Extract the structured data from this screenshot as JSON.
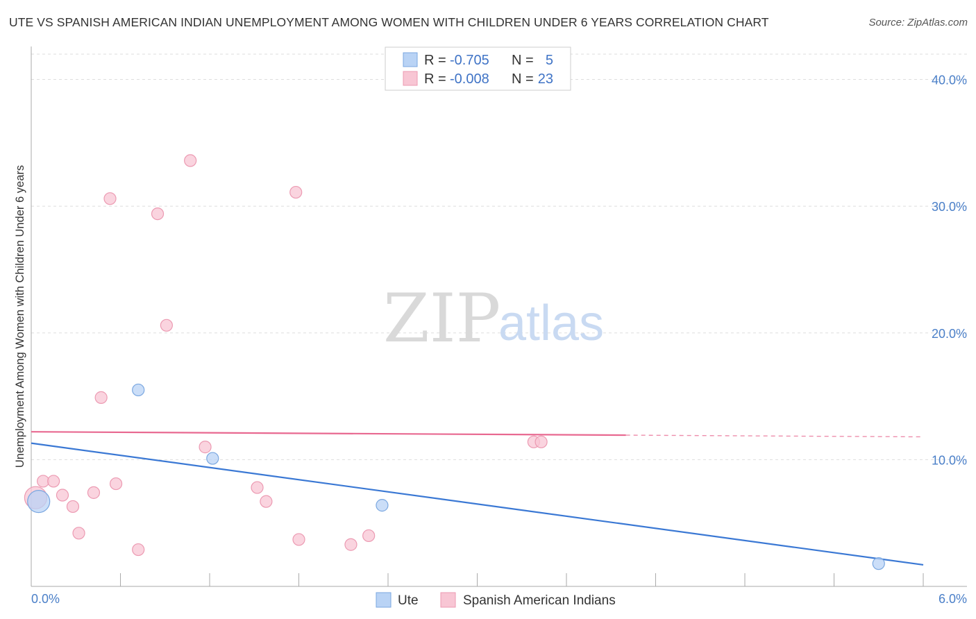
{
  "title": "UTE VS SPANISH AMERICAN INDIAN UNEMPLOYMENT AMONG WOMEN WITH CHILDREN UNDER 6 YEARS CORRELATION CHART",
  "source": "Source: ZipAtlas.com",
  "watermark": {
    "zip": "ZIP",
    "atlas": "atlas"
  },
  "colors": {
    "ute_fill": "#b9d3f5",
    "ute_stroke": "#7aa7e0",
    "ute_line": "#3a78d4",
    "sai_fill": "#f8c6d4",
    "sai_stroke": "#ec9ab2",
    "sai_line": "#e86890",
    "grid": "#dddddd",
    "axis": "#aaaaaa"
  },
  "legend": {
    "rows": [
      {
        "r_label": "R =",
        "r_value": "-0.705",
        "n_label": "N =",
        "n_value": "5"
      },
      {
        "r_label": "R =",
        "r_value": "-0.008",
        "n_label": "N =",
        "n_value": "23"
      }
    ]
  },
  "chart_data": {
    "type": "scatter",
    "title": "UTE VS SPANISH AMERICAN INDIAN UNEMPLOYMENT AMONG WOMEN WITH CHILDREN UNDER 6 YEARS CORRELATION CHART",
    "xlabel": "",
    "ylabel": "Unemployment Among Women with Children Under 6 years",
    "xlim": [
      0,
      6
    ],
    "ylim": [
      0,
      42
    ],
    "x_tick_labels": [
      "0.0%",
      "6.0%"
    ],
    "y_ticks": [
      10,
      20,
      30,
      40
    ],
    "y_tick_labels": [
      "10.0%",
      "20.0%",
      "30.0%",
      "40.0%"
    ],
    "series": [
      {
        "name": "Ute",
        "points": [
          {
            "x": 0.05,
            "y": 6.7,
            "big": true
          },
          {
            "x": 0.72,
            "y": 15.5
          },
          {
            "x": 1.22,
            "y": 10.1
          },
          {
            "x": 2.36,
            "y": 6.4
          },
          {
            "x": 5.7,
            "y": 1.8
          }
        ],
        "trend": {
          "x0": 0.0,
          "y0": 11.3,
          "x1": 6.0,
          "y1": 1.7,
          "dashed_from": null
        }
      },
      {
        "name": "Spanish American Indians",
        "points": [
          {
            "x": 0.03,
            "y": 7.0,
            "big": true
          },
          {
            "x": 0.08,
            "y": 8.3
          },
          {
            "x": 0.15,
            "y": 8.3
          },
          {
            "x": 0.21,
            "y": 7.2
          },
          {
            "x": 0.28,
            "y": 6.3
          },
          {
            "x": 0.32,
            "y": 4.2
          },
          {
            "x": 0.42,
            "y": 7.4
          },
          {
            "x": 0.47,
            "y": 14.9
          },
          {
            "x": 0.53,
            "y": 30.6
          },
          {
            "x": 0.57,
            "y": 8.1
          },
          {
            "x": 0.72,
            "y": 2.9
          },
          {
            "x": 0.85,
            "y": 29.4
          },
          {
            "x": 0.91,
            "y": 20.6
          },
          {
            "x": 1.07,
            "y": 33.6
          },
          {
            "x": 1.17,
            "y": 11.0
          },
          {
            "x": 1.52,
            "y": 7.8
          },
          {
            "x": 1.58,
            "y": 6.7
          },
          {
            "x": 1.78,
            "y": 31.1
          },
          {
            "x": 1.8,
            "y": 3.7
          },
          {
            "x": 2.15,
            "y": 3.3
          },
          {
            "x": 2.27,
            "y": 4.0
          },
          {
            "x": 3.38,
            "y": 11.4
          },
          {
            "x": 3.43,
            "y": 11.4
          }
        ],
        "trend": {
          "x0": 0.0,
          "y0": 12.2,
          "x1": 6.0,
          "y1": 11.8,
          "dashed_from": 4.0
        }
      }
    ]
  }
}
